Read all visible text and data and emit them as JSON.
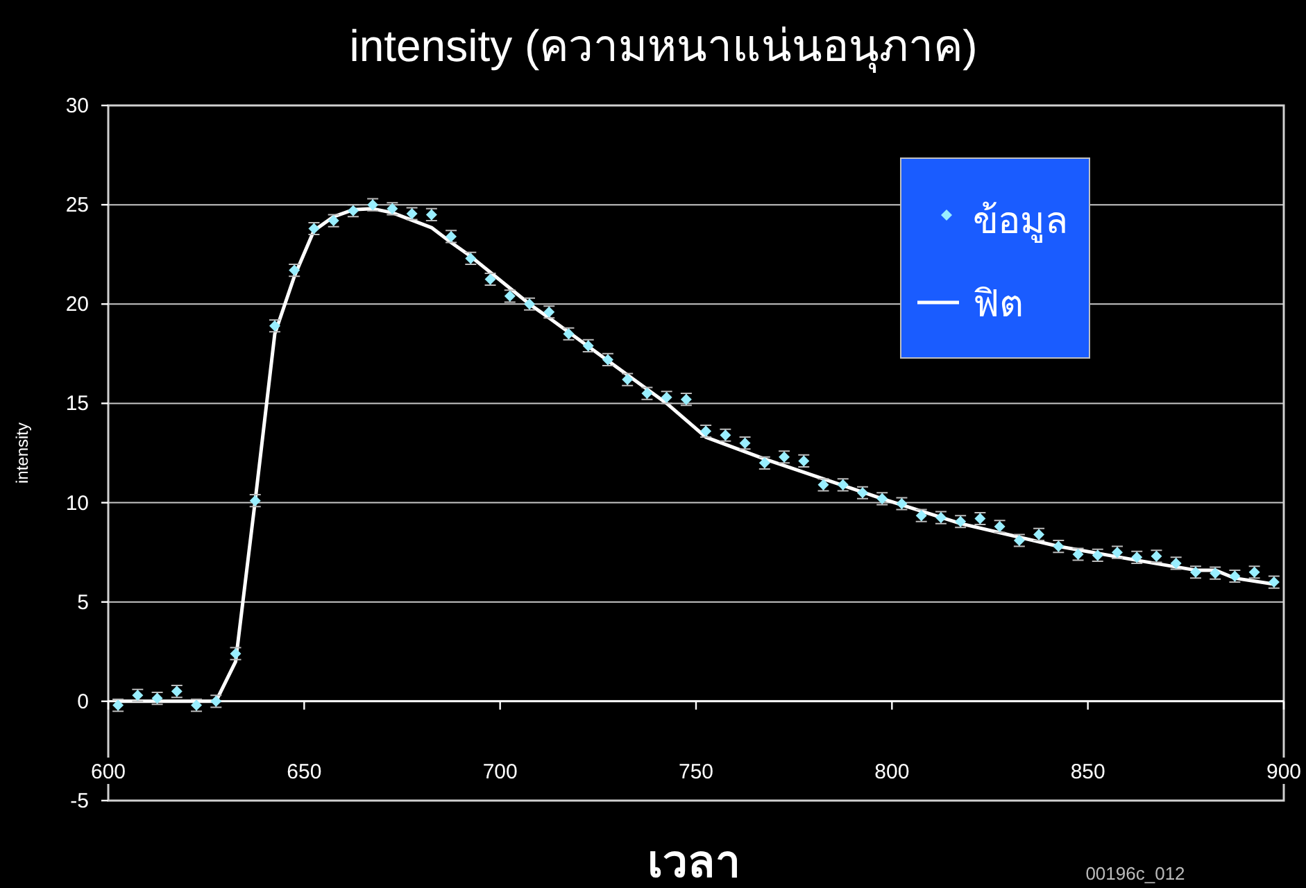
{
  "chart_data": {
    "type": "scatter",
    "title": "intensity (ความหนาแน่นอนุภาค)",
    "xlabel": "เวลา",
    "ylabel": "intensity",
    "annotations": [
      "00196c_012"
    ],
    "xlim": [
      600,
      900
    ],
    "xticks": [
      600,
      650,
      700,
      750,
      800,
      850,
      900
    ],
    "ylim": [
      -5,
      30
    ],
    "yticks": [
      -5,
      0,
      5,
      10,
      15,
      20,
      25,
      30
    ],
    "grid": "y",
    "legend": "top right",
    "series": [
      {
        "name": "ข้อมูล",
        "marker": "diamond",
        "color": "#99eeff",
        "x": [
          602.5,
          607.5,
          612.5,
          617.5,
          622.5,
          627.5,
          632.5,
          637.5,
          642.5,
          647.5,
          652.5,
          657.5,
          662.5,
          667.5,
          672.5,
          677.5,
          682.5,
          687.5,
          692.5,
          697.5,
          702.5,
          707.5,
          712.5,
          717.5,
          722.5,
          727.5,
          732.5,
          737.5,
          742.5,
          747.5,
          752.5,
          757.5,
          762.5,
          767.5,
          772.5,
          777.5,
          782.5,
          787.5,
          792.5,
          797.5,
          802.5,
          807.5,
          812.5,
          817.5,
          822.5,
          827.5,
          832.5,
          837.5,
          842.5,
          847.5,
          852.5,
          857.5,
          862.5,
          867.5,
          872.5,
          877.5,
          882.5,
          887.5,
          892.5,
          897.5
        ],
        "values": [
          -0.2,
          0.3,
          0.15,
          0.5,
          -0.2,
          0.0,
          2.4,
          10.1,
          18.9,
          21.7,
          23.8,
          24.2,
          24.7,
          25.0,
          24.8,
          24.55,
          24.5,
          23.4,
          22.3,
          21.25,
          20.4,
          20.0,
          19.6,
          18.5,
          17.9,
          17.2,
          16.2,
          15.5,
          15.3,
          15.2,
          13.6,
          13.4,
          13.0,
          12.0,
          12.3,
          12.1,
          10.9,
          10.9,
          10.5,
          10.2,
          9.95,
          9.35,
          9.25,
          9.05,
          9.2,
          8.8,
          8.1,
          8.4,
          7.8,
          7.4,
          7.35,
          7.5,
          7.25,
          7.3,
          6.95,
          6.5,
          6.45,
          6.3,
          6.5,
          6.0
        ],
        "errors": [
          0.3,
          0.3,
          0.3,
          0.3,
          0.3,
          0.3,
          0.3,
          0.3,
          0.3,
          0.3,
          0.3,
          0.3,
          0.3,
          0.3,
          0.3,
          0.3,
          0.3,
          0.3,
          0.3,
          0.3,
          0.3,
          0.3,
          0.3,
          0.3,
          0.3,
          0.3,
          0.3,
          0.3,
          0.3,
          0.3,
          0.3,
          0.3,
          0.3,
          0.3,
          0.3,
          0.3,
          0.3,
          0.3,
          0.3,
          0.3,
          0.3,
          0.3,
          0.3,
          0.3,
          0.3,
          0.3,
          0.3,
          0.3,
          0.3,
          0.3,
          0.3,
          0.3,
          0.3,
          0.3,
          0.3,
          0.3,
          0.3,
          0.3,
          0.3,
          0.3
        ]
      },
      {
        "name": "ฟิต",
        "type": "line",
        "marker": "none",
        "line_style": "solid",
        "color": "#ffffff",
        "x": [
          602.5,
          627.5,
          632.5,
          637.5,
          642.5,
          647.5,
          652.5,
          657.5,
          662.5,
          667.5,
          672.5,
          682.5,
          687.5,
          692.5,
          707.5,
          712.5,
          742.5,
          752.5,
          767.5,
          797.5,
          817.5,
          842.5,
          862.5,
          877.5,
          882.5,
          887.5,
          897.5
        ],
        "values": [
          0,
          0,
          2.0,
          10.1,
          18.5,
          21.4,
          23.7,
          24.4,
          24.75,
          24.8,
          24.6,
          23.85,
          23.1,
          22.4,
          20.0,
          19.3,
          15.0,
          13.3,
          12.2,
          10.2,
          8.95,
          7.8,
          7.1,
          6.6,
          6.6,
          6.2,
          5.9
        ]
      }
    ]
  }
}
